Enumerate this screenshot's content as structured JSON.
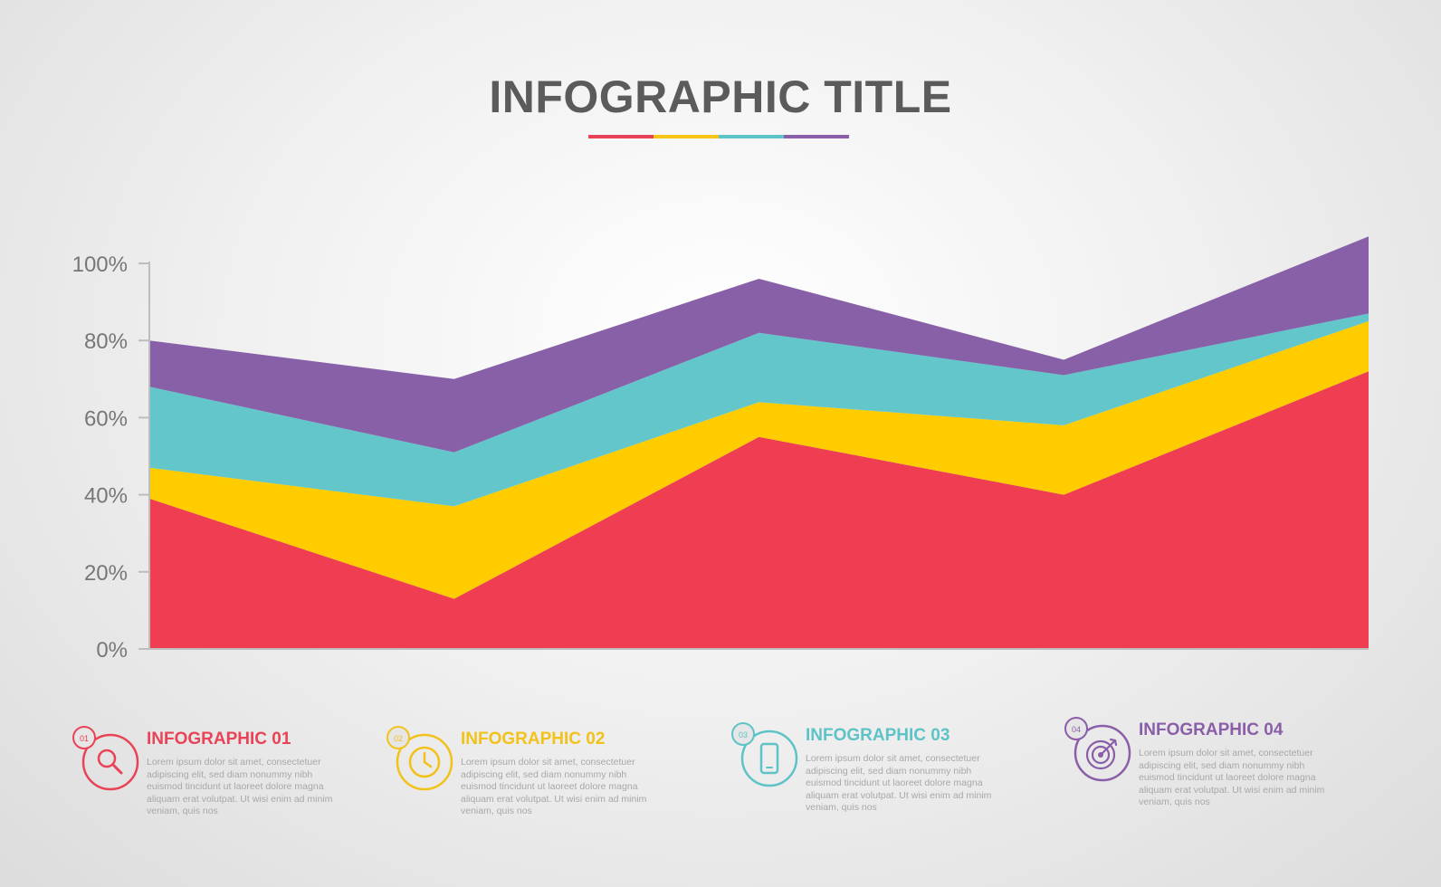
{
  "header": {
    "title": "INFOGRAPHIC TITLE",
    "underline_colors": [
      "#e84356",
      "#f7c515",
      "#5ec3c7",
      "#8a5ea8"
    ]
  },
  "chart_data": {
    "type": "area",
    "stacked": true,
    "x": [
      1,
      2,
      3,
      4,
      5
    ],
    "yticks": [
      "100%",
      "80%",
      "60%",
      "40%",
      "20%",
      "0%"
    ],
    "ylim": [
      0,
      100
    ],
    "grid": false,
    "series": [
      {
        "color": "#ef3d52",
        "values": [
          39,
          13,
          55,
          40,
          72
        ]
      },
      {
        "color": "#ffcc00",
        "values": [
          8,
          24,
          9,
          18,
          13
        ]
      },
      {
        "color": "#62c6cb",
        "values": [
          21,
          14,
          18,
          13,
          2
        ]
      },
      {
        "color": "#8860a8",
        "values": [
          12,
          19,
          14,
          4,
          20
        ]
      }
    ]
  },
  "legend": [
    {
      "num": "01",
      "icon": "magnifier-icon",
      "color": "#e84356",
      "title": "INFOGRAPHIC 01",
      "body": "Lorem ipsum dolor sit amet, consectetuer adipiscing elit, sed diam nonummy nibh euismod tincidunt ut laoreet dolore magna aliquam erat volutpat. Ut wisi enim ad minim veniam, quis nos"
    },
    {
      "num": "02",
      "icon": "clock-icon",
      "color": "#f2c21a",
      "title": "INFOGRAPHIC 02",
      "body": "Lorem ipsum dolor sit amet, consectetuer adipiscing elit, sed diam nonummy nibh euismod tincidunt ut laoreet dolore magna aliquam erat volutpat. Ut wisi enim ad minim veniam, quis nos"
    },
    {
      "num": "03",
      "icon": "smartphone-icon",
      "color": "#5ec3c7",
      "title": "INFOGRAPHIC 03",
      "body": "Lorem ipsum dolor sit amet, consectetuer adipiscing elit, sed diam nonummy nibh euismod tincidunt ut laoreet dolore magna aliquam erat volutpat. Ut wisi enim ad minim veniam, quis nos"
    },
    {
      "num": "04",
      "icon": "target-icon",
      "color": "#8a5ea8",
      "title": "INFOGRAPHIC 04",
      "body": "Lorem ipsum dolor sit amet, consectetuer adipiscing elit, sed diam nonummy nibh euismod tincidunt ut laoreet dolore magna aliquam erat volutpat. Ut wisi enim ad minim veniam, quis nos"
    }
  ]
}
